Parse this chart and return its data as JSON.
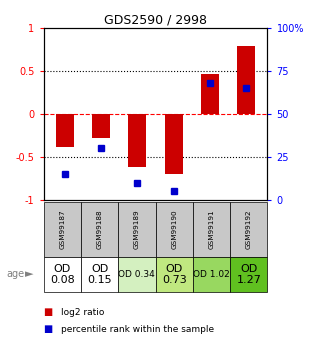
{
  "title": "GDS2590 / 2998",
  "samples": [
    "GSM99187",
    "GSM99188",
    "GSM99189",
    "GSM99190",
    "GSM99191",
    "GSM99192"
  ],
  "log2_ratio": [
    -0.38,
    -0.28,
    -0.62,
    -0.7,
    0.46,
    0.79
  ],
  "percentile_rank": [
    15,
    30,
    10,
    5,
    68,
    65
  ],
  "age_labels": [
    "OD\n0.08",
    "OD\n0.15",
    "OD 0.34",
    "OD\n0.73",
    "OD 1.02",
    "OD\n1.27"
  ],
  "age_fontsize": [
    8,
    8,
    6.5,
    8,
    6.5,
    8
  ],
  "cell_colors": [
    "#ffffff",
    "#ffffff",
    "#d4f0c0",
    "#c0e880",
    "#98d860",
    "#60c020"
  ],
  "bar_color": "#cc0000",
  "dot_color": "#0000cc",
  "ylim_left": [
    -1,
    1
  ],
  "ylim_right": [
    0,
    100
  ],
  "yticks_left": [
    -1,
    -0.5,
    0,
    0.5,
    1
  ],
  "ytick_labels_left": [
    "-1",
    "-0.5",
    "0",
    "0.5",
    "1"
  ],
  "yticks_right": [
    0,
    25,
    50,
    75,
    100
  ],
  "ytick_labels_right": [
    "0",
    "25",
    "50",
    "75",
    "100%"
  ],
  "hlines": [
    -0.5,
    0,
    0.5
  ],
  "hline_styles": [
    "dotted",
    "dashed",
    "dotted"
  ],
  "hline_colors": [
    "black",
    "red",
    "black"
  ],
  "background_color": "#ffffff",
  "gray_color": "#c8c8c8"
}
